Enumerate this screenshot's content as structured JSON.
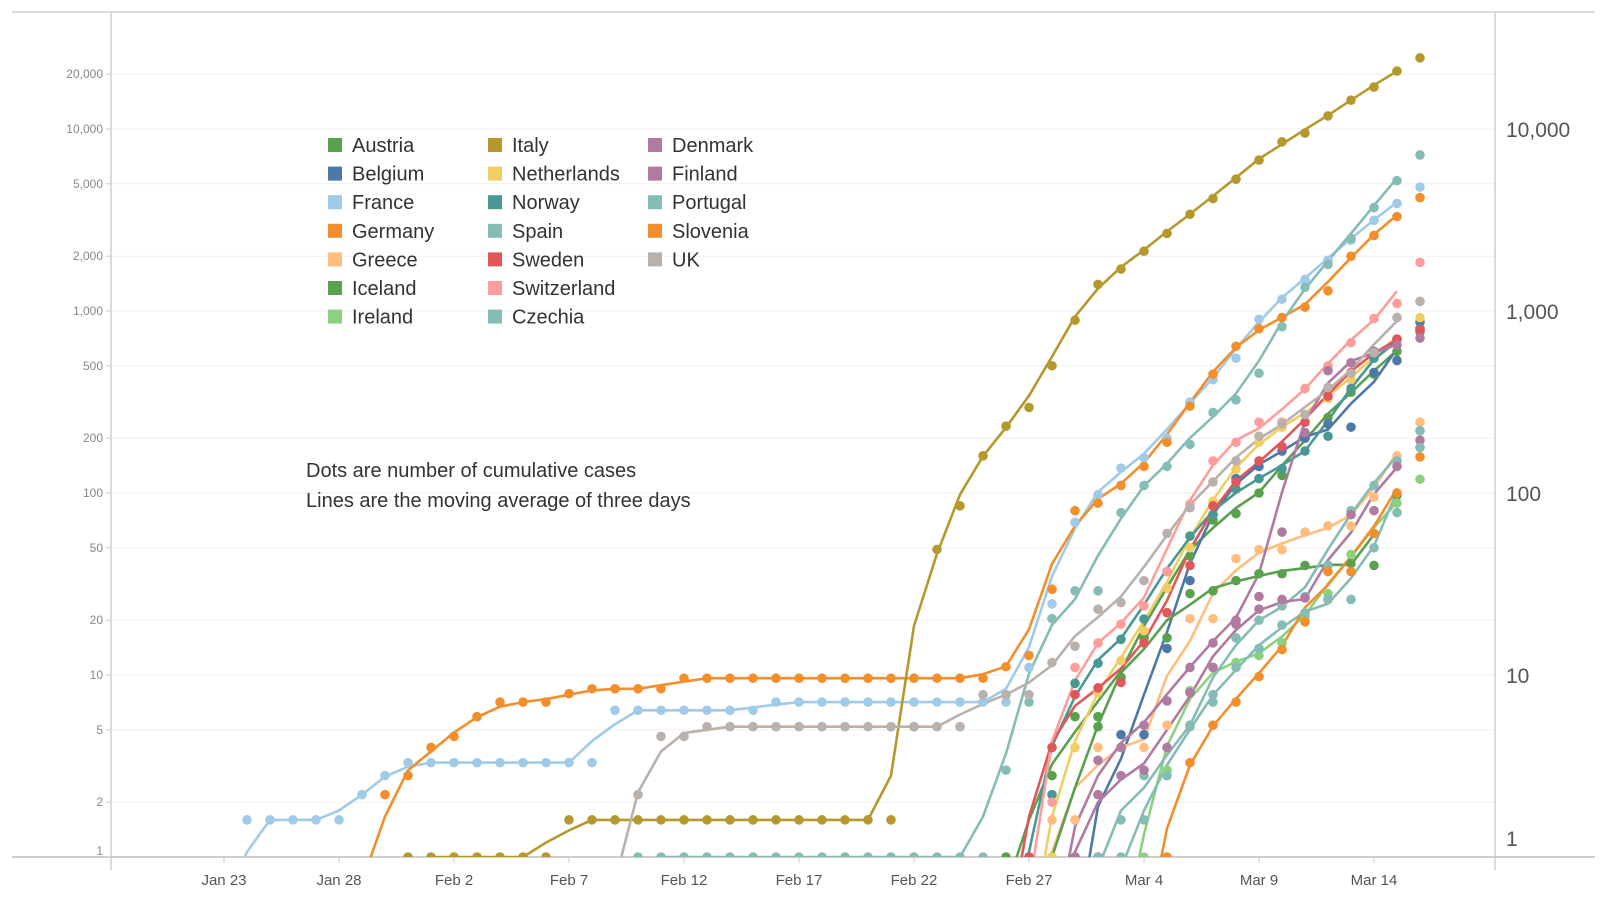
{
  "chart_data": {
    "type": "line",
    "y_scale": "log",
    "ylim": [
      1,
      30000
    ],
    "grid": true,
    "legend_placement": "top-left",
    "x_ticks": [
      "Jan 23",
      "Jan 28",
      "Feb 2",
      "Feb 7",
      "Feb 12",
      "Feb 17",
      "Feb 22",
      "Feb 27",
      "Mar 4",
      "Mar 9",
      "Mar 14"
    ],
    "x_tick_every_days": 5,
    "y_ticks_left": [
      {
        "value": 1,
        "label": "1"
      },
      {
        "value": 2,
        "label": "2"
      },
      {
        "value": 5,
        "label": "5"
      },
      {
        "value": 10,
        "label": "10"
      },
      {
        "value": 20,
        "label": "20"
      },
      {
        "value": 50,
        "label": "50"
      },
      {
        "value": 100,
        "label": "100"
      },
      {
        "value": 200,
        "label": "200"
      },
      {
        "value": 500,
        "label": "500"
      },
      {
        "value": 1000,
        "label": "1,000"
      },
      {
        "value": 2000,
        "label": "2,000"
      },
      {
        "value": 5000,
        "label": "5,000"
      },
      {
        "value": 10000,
        "label": "10,000"
      },
      {
        "value": 20000,
        "label": "20,000"
      }
    ],
    "y_ticks_right": [
      {
        "value": 1,
        "label": "1"
      },
      {
        "value": 10,
        "label": "10"
      },
      {
        "value": 100,
        "label": "100"
      },
      {
        "value": 1000,
        "label": "1,000"
      },
      {
        "value": 10000,
        "label": "10,000"
      }
    ],
    "annotations": [
      "Dots are number of cumulative cases",
      "Lines are the moving average of three days"
    ],
    "line_rule": "centered 3-day moving average",
    "series": [
      {
        "name": "Austria",
        "color": "#59A14F",
        "start_day": 34,
        "values": [
          1,
          1,
          2.8,
          5.9,
          5.9,
          9.7,
          16,
          30,
          45,
          71,
          77,
          100,
          125,
          200,
          260,
          358,
          450,
          600,
          770
        ]
      },
      {
        "name": "Belgium",
        "color": "#4E79A7",
        "start_day": 38,
        "values": [
          1,
          4.7,
          4.7,
          14,
          33,
          76,
          120,
          140,
          170,
          200,
          240,
          230,
          460,
          535,
          870
        ]
      },
      {
        "name": "France",
        "color": "#A0CBE8",
        "start_day": 1,
        "values": [
          1.6,
          1.6,
          1.6,
          1.6,
          1.6,
          2.2,
          2.8,
          3.3,
          3.3,
          3.3,
          3.3,
          3.3,
          3.3,
          3.3,
          3.3,
          3.3,
          6.4,
          6.4,
          6.4,
          6.4,
          6.4,
          6.4,
          6.4,
          7.1,
          7.1,
          7.1,
          7.1,
          7.1,
          7.1,
          7.1,
          7.1,
          7.1,
          7.1,
          7.1,
          11,
          24.6,
          69,
          98,
          137,
          156,
          200,
          316,
          420,
          550,
          900,
          1160,
          1490,
          1900,
          2450,
          3150,
          3900,
          4800
        ]
      },
      {
        "name": "Germany",
        "color": "#F28E2B",
        "start_day": 7,
        "values": [
          2.2,
          2.8,
          4.0,
          4.6,
          5.9,
          7.1,
          7.1,
          7.1,
          7.9,
          8.4,
          8.4,
          8.4,
          8.4,
          9.6,
          9.6,
          9.6,
          9.6,
          9.6,
          9.6,
          9.6,
          9.6,
          9.6,
          9.6,
          9.6,
          9.6,
          9.6,
          9.6,
          11.1,
          12.8,
          29.6,
          80,
          88,
          110,
          140,
          190,
          300,
          450,
          640,
          800,
          920,
          1050,
          1290,
          2000,
          2600,
          3300,
          4200
        ]
      },
      {
        "name": "Greece",
        "color": "#FFBE7D",
        "start_day": 36,
        "values": [
          1.6,
          1.6,
          4,
          4,
          4,
          5.3,
          20.4,
          20.4,
          43.6,
          48.8,
          48.8,
          61,
          66,
          66,
          95,
          160,
          245
        ]
      },
      {
        "name": "Iceland",
        "color": "#59A14F",
        "start_day": 35,
        "values": [
          1,
          1,
          1,
          5.2,
          9.7,
          16,
          16,
          28,
          29,
          33,
          36,
          36,
          40,
          40,
          41,
          40,
          97
        ]
      },
      {
        "name": "Ireland",
        "color": "#8CD17D",
        "start_day": 40,
        "values": [
          1,
          3,
          8.2,
          11,
          11.7,
          12.8,
          15,
          21,
          28,
          46,
          60,
          88,
          119
        ]
      },
      {
        "name": "Italy",
        "color": "#B6992D",
        "start_day": 8,
        "values": [
          1,
          1,
          1,
          1,
          1,
          1,
          1,
          1.6,
          1.6,
          1.6,
          1.6,
          1.6,
          1.6,
          1.6,
          1.6,
          1.6,
          1.6,
          1.6,
          1.6,
          1.6,
          1.6,
          1.6,
          5.2,
          49,
          85,
          160,
          233,
          295,
          500,
          890,
          1400,
          1700,
          2130,
          2670,
          3400,
          4150,
          5300,
          6750,
          8500,
          9500,
          11800,
          14400,
          17000,
          20800,
          24600
        ]
      },
      {
        "name": "Netherlands",
        "color": "#F1CE63",
        "start_day": 36,
        "values": [
          1,
          4,
          8,
          12,
          17.5,
          30,
          50,
          90,
          135,
          190,
          230,
          270,
          330,
          420,
          550,
          700,
          920
        ]
      },
      {
        "name": "Norway",
        "color": "#499894",
        "start_day": 35,
        "values": [
          1,
          2.2,
          9,
          11.6,
          15.7,
          20.3,
          37,
          58,
          76,
          105,
          120,
          136,
          170,
          205,
          375,
          550,
          700,
          800
        ]
      },
      {
        "name": "Spain",
        "color": "#86BCB6",
        "start_day": 18,
        "values": [
          1,
          1,
          1,
          1,
          1,
          1,
          1,
          1,
          1,
          1,
          1,
          1,
          1,
          1,
          1,
          1,
          3,
          7.1,
          20.4,
          29,
          29,
          78,
          110,
          140,
          185,
          277,
          325,
          455,
          820,
          1350,
          1800,
          2500,
          3700,
          5200,
          7200
        ]
      },
      {
        "name": "Sweden",
        "color": "#E15759",
        "start_day": 35,
        "values": [
          1,
          4,
          7.8,
          8.5,
          9.1,
          15,
          22,
          40,
          85,
          115,
          150,
          180,
          245,
          340,
          460,
          600,
          700,
          790
        ]
      },
      {
        "name": "Switzerland",
        "color": "#FF9D9A",
        "start_day": 36,
        "values": [
          2,
          11,
          15,
          19,
          24,
          37,
          87,
          150,
          190,
          245,
          245,
          375,
          500,
          670,
          910,
          1100,
          1850
        ]
      },
      {
        "name": "Czechia",
        "color": "#86BCB6",
        "start_day": 38,
        "values": [
          1,
          1.6,
          2.8,
          2.8,
          5.3,
          7.8,
          16,
          20,
          24,
          27,
          40,
          80,
          110,
          150,
          220
        ]
      },
      {
        "name": "Denmark",
        "color": "#B07AA1",
        "start_day": 37,
        "values": [
          1,
          3.4,
          4,
          5.3,
          7.2,
          11,
          15,
          20,
          27,
          61,
          215,
          470,
          520,
          600,
          650,
          710
        ]
      },
      {
        "name": "Finland",
        "color": "#B07AA1",
        "start_day": 37,
        "values": [
          1,
          2.2,
          2.8,
          3,
          4,
          8,
          11,
          19,
          23,
          26,
          26.5,
          26,
          76,
          80,
          140,
          195
        ]
      },
      {
        "name": "Portugal",
        "color": "#86BCB6",
        "start_day": 39,
        "values": [
          1,
          1.6,
          2.8,
          5.2,
          7.1,
          11,
          14,
          18.8,
          22,
          26,
          26,
          50,
          78,
          178
        ]
      },
      {
        "name": "Slovenia",
        "color": "#F28E2B",
        "start_day": 41,
        "values": [
          1,
          3.3,
          5.3,
          7.1,
          9.8,
          13.8,
          19.6,
          37,
          37,
          60,
          100,
          158
        ]
      },
      {
        "name": "UK",
        "color": "#BAB0AC",
        "start_day": 18,
        "values": [
          2.2,
          4.6,
          4.6,
          5.2,
          5.2,
          5.2,
          5.2,
          5.2,
          5.2,
          5.2,
          5.2,
          5.2,
          5.2,
          5.2,
          5.2,
          7.8,
          7.8,
          7.8,
          11.7,
          14.4,
          23,
          25,
          33,
          60,
          83,
          115,
          150,
          205,
          240,
          270,
          380,
          455,
          590,
          920,
          1130
        ]
      }
    ]
  }
}
